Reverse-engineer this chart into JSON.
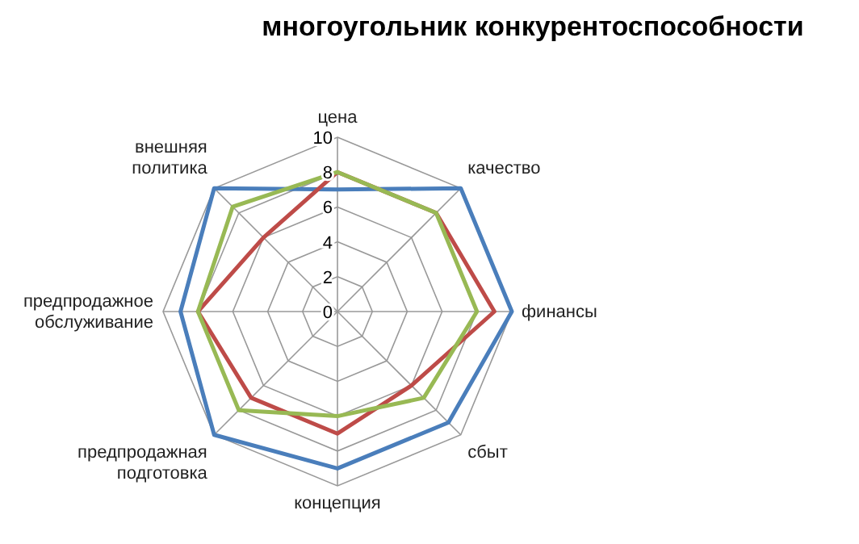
{
  "chart_data": {
    "type": "radar",
    "title": "многоугольник конкурентоспособности",
    "categories": [
      "цена",
      "качество",
      "финансы",
      "сбыт",
      "концепция",
      "предпродажная подготовка",
      "предпродажное обслуживание",
      "внешняя политика"
    ],
    "series": [
      {
        "color": "#4a7ebb",
        "values": [
          7,
          10,
          10,
          9,
          9,
          10,
          9,
          10
        ]
      },
      {
        "color": "#be4b48",
        "values": [
          8,
          8,
          9,
          6,
          7,
          7,
          8,
          6
        ]
      },
      {
        "color": "#98b954",
        "values": [
          8,
          8,
          8,
          7,
          6,
          8,
          8,
          8.5
        ]
      }
    ],
    "ylim": [
      0,
      10
    ],
    "yticks": [
      0,
      2,
      4,
      6,
      8,
      10
    ],
    "grid": true,
    "marker": "none",
    "line_style": "solid"
  }
}
